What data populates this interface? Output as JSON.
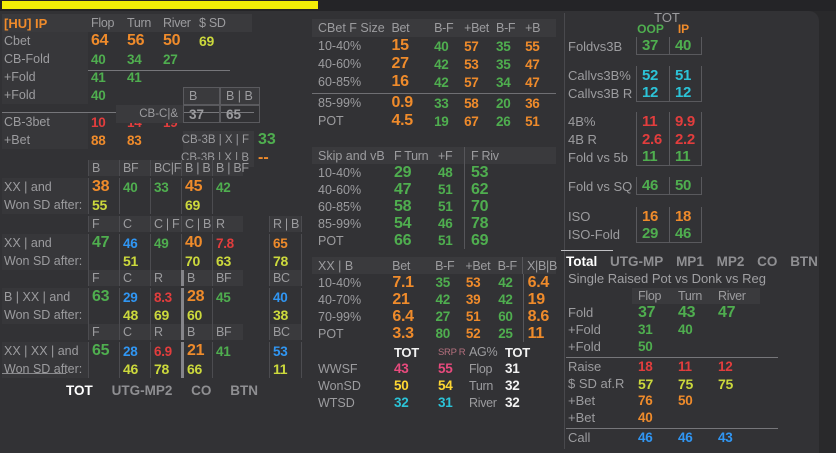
{
  "window": {
    "note_bar_color": "#f2ee07"
  },
  "left_top": {
    "corner": "[HU] IP",
    "header": [
      "Flop",
      "Turn",
      "River",
      "$ SD"
    ],
    "rows": [
      {
        "label": "Cbet",
        "cells": [
          [
            "64",
            "o",
            "lg"
          ],
          [
            "56",
            "o",
            "lg"
          ],
          [
            "50",
            "o",
            "lg"
          ],
          [
            "69",
            "y",
            "lg"
          ]
        ]
      },
      {
        "label": "CB-Fold",
        "cells": [
          [
            "40",
            "g"
          ],
          [
            "34",
            "g"
          ],
          [
            "27",
            "g"
          ],
          null
        ]
      },
      {
        "label": "+Fold",
        "cells": [
          [
            "41",
            "g"
          ],
          [
            "41",
            "g"
          ],
          null,
          null
        ]
      },
      {
        "label": "+Fold",
        "cells": [
          [
            "40",
            "g"
          ],
          null,
          null,
          null
        ]
      },
      {
        "label": "CB-3bet",
        "cells": [
          [
            "10",
            "r"
          ],
          [
            "14",
            "r"
          ],
          [
            "19",
            "r"
          ],
          null
        ],
        "sep": true
      },
      {
        "label": "+Bet",
        "cells": [
          [
            "88",
            "o"
          ],
          [
            "83",
            "o"
          ],
          null,
          null
        ]
      }
    ],
    "sub": {
      "h1": "B",
      "h2": "B | B",
      "cbc_label": "CB-C|&",
      "v1": "37",
      "v2": "65"
    },
    "cb3b": {
      "l1": "CB-3B | X | F",
      "v1": "33",
      "l2": "CB-3B | X | B",
      "v2": "--"
    }
  },
  "left_block2": {
    "corner": "",
    "header": [
      "B",
      "BF",
      "BC|F",
      "B | B",
      "B | BF",
      ""
    ],
    "rows": [
      {
        "label": "XX | and",
        "cells": [
          [
            "38",
            "o",
            "lg"
          ],
          [
            "40",
            "g"
          ],
          [
            "33",
            "g"
          ],
          [
            "45",
            "o",
            "lg"
          ],
          [
            "42",
            "g"
          ],
          null
        ]
      },
      {
        "label": "Won SD after:",
        "cells": [
          [
            "55",
            "y"
          ],
          null,
          null,
          [
            "69",
            "y"
          ],
          null,
          null
        ]
      }
    ]
  },
  "left_block3": {
    "corner": "",
    "header": [
      "F",
      "C",
      "C | F",
      "C | B",
      "R",
      "R | B"
    ],
    "rows": [
      {
        "label": "XX | and",
        "cells": [
          [
            "47",
            "g",
            "lg"
          ],
          [
            "46",
            "b"
          ],
          [
            "49",
            "g"
          ],
          [
            "40",
            "o",
            "lg"
          ],
          [
            "7.8",
            "r"
          ],
          [
            "65",
            "o"
          ]
        ]
      },
      {
        "label": "Won SD after:",
        "cells": [
          null,
          [
            "51",
            "y"
          ],
          null,
          [
            "70",
            "y"
          ],
          [
            "63",
            "y"
          ],
          [
            "78",
            "y"
          ]
        ]
      }
    ]
  },
  "left_block4": {
    "corner": "",
    "header": [
      "F",
      "C",
      "R",
      "B",
      "BF",
      "BC"
    ],
    "rows": [
      {
        "label": "B | XX | and",
        "cells": [
          [
            "63",
            "g",
            "lg"
          ],
          [
            "29",
            "b"
          ],
          [
            "8.3",
            "r"
          ],
          [
            "28",
            "o",
            "lg"
          ],
          [
            "45",
            "g"
          ],
          [
            "40",
            "b"
          ]
        ]
      },
      {
        "label": "Won SD after:",
        "cells": [
          null,
          [
            "48",
            "y"
          ],
          [
            "69",
            "y"
          ],
          [
            "60",
            "y"
          ],
          null,
          [
            "38",
            "y"
          ]
        ]
      }
    ]
  },
  "left_block5": {
    "corner": "",
    "header": [
      "F",
      "C",
      "R",
      "B",
      "BF",
      "BC"
    ],
    "rows": [
      {
        "label": "XX | XX | and",
        "cells": [
          [
            "65",
            "g",
            "lg"
          ],
          [
            "28",
            "b"
          ],
          [
            "6.9",
            "r"
          ],
          [
            "21",
            "o",
            "lg"
          ],
          [
            "41",
            "g"
          ],
          [
            "53",
            "b"
          ]
        ]
      },
      {
        "label": "Won SD after:",
        "cells": [
          null,
          [
            "46",
            "y"
          ],
          [
            "78",
            "y"
          ],
          [
            "66",
            "y"
          ],
          null,
          [
            "11",
            "y"
          ]
        ]
      }
    ]
  },
  "left_tabs": [
    {
      "label": "TOT",
      "active": true
    },
    {
      "label": "UTG-MP2",
      "active": false
    },
    {
      "label": "CO",
      "active": false
    },
    {
      "label": "BTN",
      "active": false
    }
  ],
  "mid_cbet_size": {
    "corner": "CBet F Size",
    "header": [
      "Bet",
      "B-F",
      "+Bet",
      "B-F",
      "+B"
    ],
    "rows": [
      {
        "label": "10-40%",
        "cells": [
          [
            "15",
            "o",
            "lg"
          ],
          [
            "40",
            "g"
          ],
          [
            "57",
            "o"
          ],
          [
            "35",
            "g"
          ],
          [
            "55",
            "o"
          ]
        ]
      },
      {
        "label": "40-60%",
        "cells": [
          [
            "27",
            "o",
            "lg"
          ],
          [
            "42",
            "g"
          ],
          [
            "53",
            "o"
          ],
          [
            "35",
            "g"
          ],
          [
            "47",
            "o"
          ]
        ]
      },
      {
        "label": "60-85%",
        "cells": [
          [
            "16",
            "o",
            "lg"
          ],
          [
            "42",
            "g"
          ],
          [
            "57",
            "o"
          ],
          [
            "34",
            "g"
          ],
          [
            "47",
            "o"
          ]
        ]
      },
      {
        "label": "85-99%",
        "cells": [
          [
            "0.9",
            "o",
            "lg"
          ],
          [
            "33",
            "g"
          ],
          [
            "58",
            "o"
          ],
          [
            "20",
            "g"
          ],
          [
            "36",
            "o"
          ]
        ],
        "sep": true
      },
      {
        "label": "POT",
        "cells": [
          [
            "4.5",
            "o",
            "lg"
          ],
          [
            "19",
            "g"
          ],
          [
            "67",
            "o"
          ],
          [
            "26",
            "g"
          ],
          [
            "51",
            "o"
          ]
        ]
      }
    ]
  },
  "mid_skip": {
    "corner": "Skip and vB",
    "header": [
      "F Turn",
      "+F",
      "F Riv"
    ],
    "rows": [
      {
        "label": "10-40%",
        "cells": [
          [
            "29",
            "g",
            "lg"
          ],
          [
            "48",
            "g"
          ],
          [
            "53",
            "g",
            "lg"
          ]
        ]
      },
      {
        "label": "40-60%",
        "cells": [
          [
            "47",
            "g",
            "lg"
          ],
          [
            "51",
            "g"
          ],
          [
            "62",
            "g",
            "lg"
          ]
        ]
      },
      {
        "label": "60-85%",
        "cells": [
          [
            "58",
            "g",
            "lg"
          ],
          [
            "51",
            "g"
          ],
          [
            "70",
            "g",
            "lg"
          ]
        ]
      },
      {
        "label": "85-99%",
        "cells": [
          [
            "54",
            "g",
            "lg"
          ],
          [
            "46",
            "g"
          ],
          [
            "78",
            "g",
            "lg"
          ]
        ]
      },
      {
        "label": "POT",
        "cells": [
          [
            "66",
            "g",
            "lg"
          ],
          [
            "51",
            "g"
          ],
          [
            "69",
            "g",
            "lg"
          ]
        ]
      }
    ]
  },
  "mid_xxb": {
    "corner": "XX | B",
    "header": [
      "Bet",
      "B-F",
      "+Bet",
      "B-F",
      "X|B|B"
    ],
    "rows": [
      {
        "label": "10-40%",
        "cells": [
          [
            "7.1",
            "o",
            "lg"
          ],
          [
            "35",
            "g"
          ],
          [
            "53",
            "o"
          ],
          [
            "42",
            "g"
          ],
          [
            "6.4",
            "o",
            "lg"
          ]
        ]
      },
      {
        "label": "40-70%",
        "cells": [
          [
            "21",
            "o",
            "lg"
          ],
          [
            "42",
            "g"
          ],
          [
            "39",
            "o"
          ],
          [
            "42",
            "g"
          ],
          [
            "19",
            "o",
            "lg"
          ]
        ]
      },
      {
        "label": "70-99%",
        "cells": [
          [
            "6.4",
            "o",
            "lg"
          ],
          [
            "27",
            "g"
          ],
          [
            "51",
            "o"
          ],
          [
            "60",
            "g"
          ],
          [
            "8.6",
            "o",
            "lg"
          ]
        ]
      },
      {
        "label": "POT",
        "cells": [
          [
            "3.3",
            "o",
            "lg"
          ],
          [
            "80",
            "g"
          ],
          [
            "52",
            "o"
          ],
          [
            "25",
            "g"
          ],
          [
            "11",
            "o",
            "lg"
          ]
        ]
      }
    ]
  },
  "mid_stats": {
    "corner": "",
    "header": [
      "TOT",
      "SRP R",
      "AG%",
      "TOT"
    ],
    "rows": [
      {
        "label": "WWSF",
        "cells": [
          [
            "43",
            "p"
          ],
          [
            "55",
            "p"
          ],
          [
            "Flop",
            "gy"
          ],
          [
            "31",
            "w"
          ]
        ]
      },
      {
        "label": "WonSD",
        "cells": [
          [
            "50",
            "Y"
          ],
          [
            "54",
            "Y"
          ],
          [
            "Turn",
            "gy"
          ],
          [
            "32",
            "w"
          ]
        ]
      },
      {
        "label": "WTSD",
        "cells": [
          [
            "32",
            "c"
          ],
          [
            "31",
            "c"
          ],
          [
            "River",
            "gy"
          ],
          [
            "32",
            "w"
          ]
        ]
      }
    ]
  },
  "right_top": {
    "tot_label": "TOT",
    "oop_label": "OOP",
    "ip_label": "IP",
    "group1": {
      "rows": [
        {
          "label": "Foldvs3B",
          "cells": [
            [
              "37",
              "g"
            ],
            [
              "40",
              "g"
            ]
          ]
        }
      ]
    },
    "group2": {
      "rows": [
        {
          "label": "Callvs3B%",
          "cells": [
            [
              "52",
              "c"
            ],
            [
              "51",
              "c"
            ]
          ]
        },
        {
          "label": "Callvs3B R",
          "cells": [
            [
              "12",
              "c"
            ],
            [
              "12",
              "c"
            ]
          ]
        }
      ]
    },
    "group3": {
      "rows": [
        {
          "label": "4B%",
          "cells": [
            [
              "11",
              "r"
            ],
            [
              "9.9",
              "r"
            ]
          ]
        },
        {
          "label": "4B R",
          "cells": [
            [
              "2.6",
              "r"
            ],
            [
              "2.2",
              "r"
            ]
          ]
        },
        {
          "label": "Fold vs 5b",
          "cells": [
            [
              "11",
              "g"
            ],
            [
              "11",
              "g"
            ]
          ]
        }
      ]
    },
    "group4": {
      "rows": [
        {
          "label": "Fold vs SQ",
          "cells": [
            [
              "46",
              "g"
            ],
            [
              "50",
              "g"
            ]
          ]
        }
      ]
    },
    "group5": {
      "rows": [
        {
          "label": "ISO",
          "cells": [
            [
              "16",
              "o"
            ],
            [
              "18",
              "o"
            ]
          ]
        },
        {
          "label": "ISO-Fold",
          "cells": [
            [
              "29",
              "g"
            ],
            [
              "46",
              "g"
            ]
          ]
        }
      ]
    }
  },
  "right_tabs": [
    {
      "label": "Total",
      "active": true
    },
    {
      "label": "UTG-MP",
      "active": false
    },
    {
      "label": "MP1",
      "active": false
    },
    {
      "label": "MP2",
      "active": false
    },
    {
      "label": "CO",
      "active": false
    },
    {
      "label": "BTN",
      "active": false
    }
  ],
  "right_bottom": {
    "title": "Single Raised Pot vs Donk vs Reg",
    "corner": "",
    "header": [
      "Flop",
      "Turn",
      "River"
    ],
    "rows": [
      {
        "label": "Fold",
        "cells": [
          [
            "37",
            "g",
            "lg"
          ],
          [
            "43",
            "g",
            "lg"
          ],
          [
            "47",
            "g",
            "lg"
          ]
        ]
      },
      {
        "label": "+Fold",
        "cells": [
          [
            "31",
            "g"
          ],
          [
            "40",
            "g"
          ],
          null
        ]
      },
      {
        "label": "+Fold",
        "cells": [
          [
            "50",
            "g"
          ],
          null,
          null
        ]
      },
      {
        "label": "Raise",
        "cells": [
          [
            "18",
            "r"
          ],
          [
            "11",
            "r"
          ],
          [
            "12",
            "r"
          ]
        ],
        "sep": true
      },
      {
        "label": "$ SD af.R",
        "cells": [
          [
            "57",
            "y"
          ],
          [
            "75",
            "y"
          ],
          [
            "75",
            "y"
          ]
        ]
      },
      {
        "label": "+Bet",
        "cells": [
          [
            "76",
            "o"
          ],
          [
            "50",
            "o"
          ],
          null
        ]
      },
      {
        "label": "+Bet",
        "cells": [
          [
            "40",
            "o"
          ],
          null,
          null
        ]
      },
      {
        "label": "Call",
        "cells": [
          [
            "46",
            "b"
          ],
          [
            "46",
            "b"
          ],
          [
            "43",
            "b"
          ]
        ],
        "sep": true
      }
    ]
  }
}
